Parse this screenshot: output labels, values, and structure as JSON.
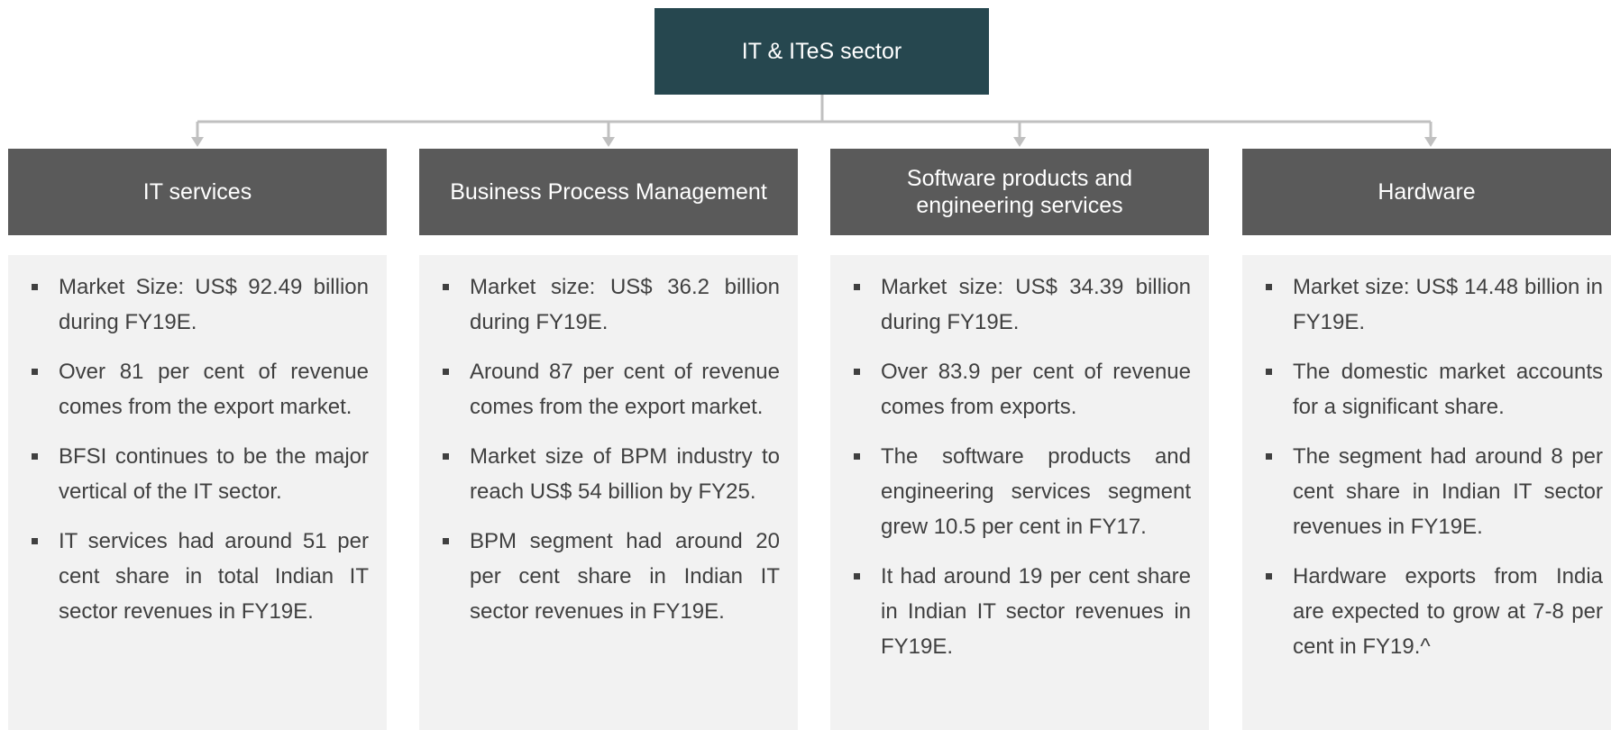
{
  "root": {
    "label": "IT & ITeS sector"
  },
  "columns": [
    {
      "title": "IT services",
      "bullets": [
        "Market Size: US$ 92.49 billion during FY19E.",
        "Over 81 per cent of revenue comes from the export market.",
        "BFSI continues to be the major vertical of the IT sector.",
        "IT services had around 51 per cent share in total Indian IT sector revenues in FY19E."
      ]
    },
    {
      "title": "Business Process Management",
      "bullets": [
        "Market size: US$ 36.2 billion during FY19E.",
        "Around 87 per cent of revenue comes from the export market.",
        "Market size of BPM industry to reach US$ 54 billion by FY25.",
        "BPM segment had around 20 per cent share in Indian IT sector revenues in FY19E."
      ]
    },
    {
      "title": "Software products and engineering services",
      "bullets": [
        "Market size: US$ 34.39 billion during FY19E.",
        "Over 83.9 per cent of revenue comes from exports.",
        "The software products and engineering services segment grew 10.5 per cent in FY17.",
        "It had around 19 per cent share in Indian IT sector revenues in FY19E."
      ]
    },
    {
      "title": "Hardware",
      "bullets": [
        "Market size: US$ 14.48 billion in FY19E.",
        "The domestic market accounts for a significant share.",
        "The segment had around 8 per cent share in Indian IT sector revenues in FY19E.",
        "Hardware exports from India are expected to grow at 7-8 per cent in FY19.^"
      ]
    }
  ]
}
